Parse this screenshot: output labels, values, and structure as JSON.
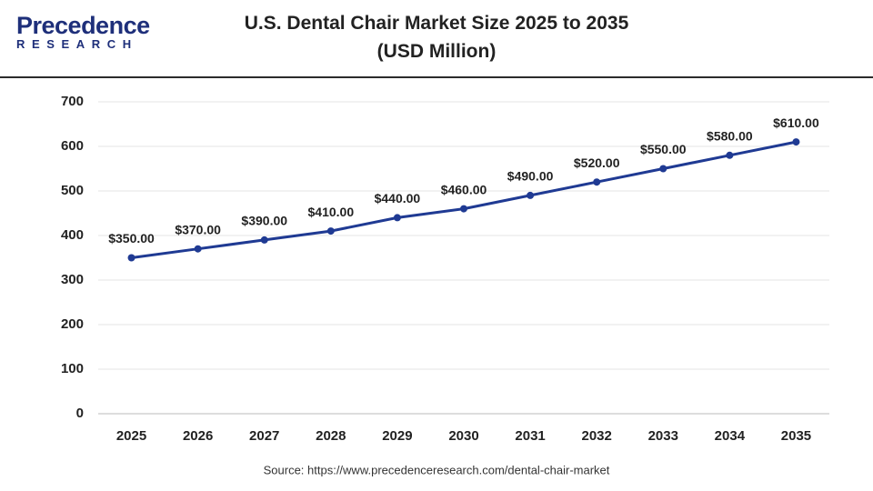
{
  "logo": {
    "name": "Precedence",
    "tagline": "RESEARCH"
  },
  "chart_data": {
    "type": "line",
    "title": "U.S. Dental Chair Market Size 2025 to 2035 (USD Million)",
    "categories": [
      "2025",
      "2026",
      "2027",
      "2028",
      "2029",
      "2030",
      "2031",
      "2032",
      "2033",
      "2034",
      "2035"
    ],
    "values": [
      350,
      370,
      390,
      410,
      440,
      460,
      490,
      520,
      550,
      580,
      610
    ],
    "value_labels": [
      "$350.00",
      "$370.00",
      "$390.00",
      "$410.00",
      "$440.00",
      "$460.00",
      "$490.00",
      "$520.00",
      "$550.00",
      "$580.00",
      "$610.00"
    ],
    "color": "#1f3a93",
    "ylim": [
      0,
      700
    ],
    "yticks": [
      0,
      100,
      200,
      300,
      400,
      500,
      600,
      700
    ],
    "grid": true,
    "source": "Source: https://www.precedenceresearch.com/dental-chair-market"
  }
}
